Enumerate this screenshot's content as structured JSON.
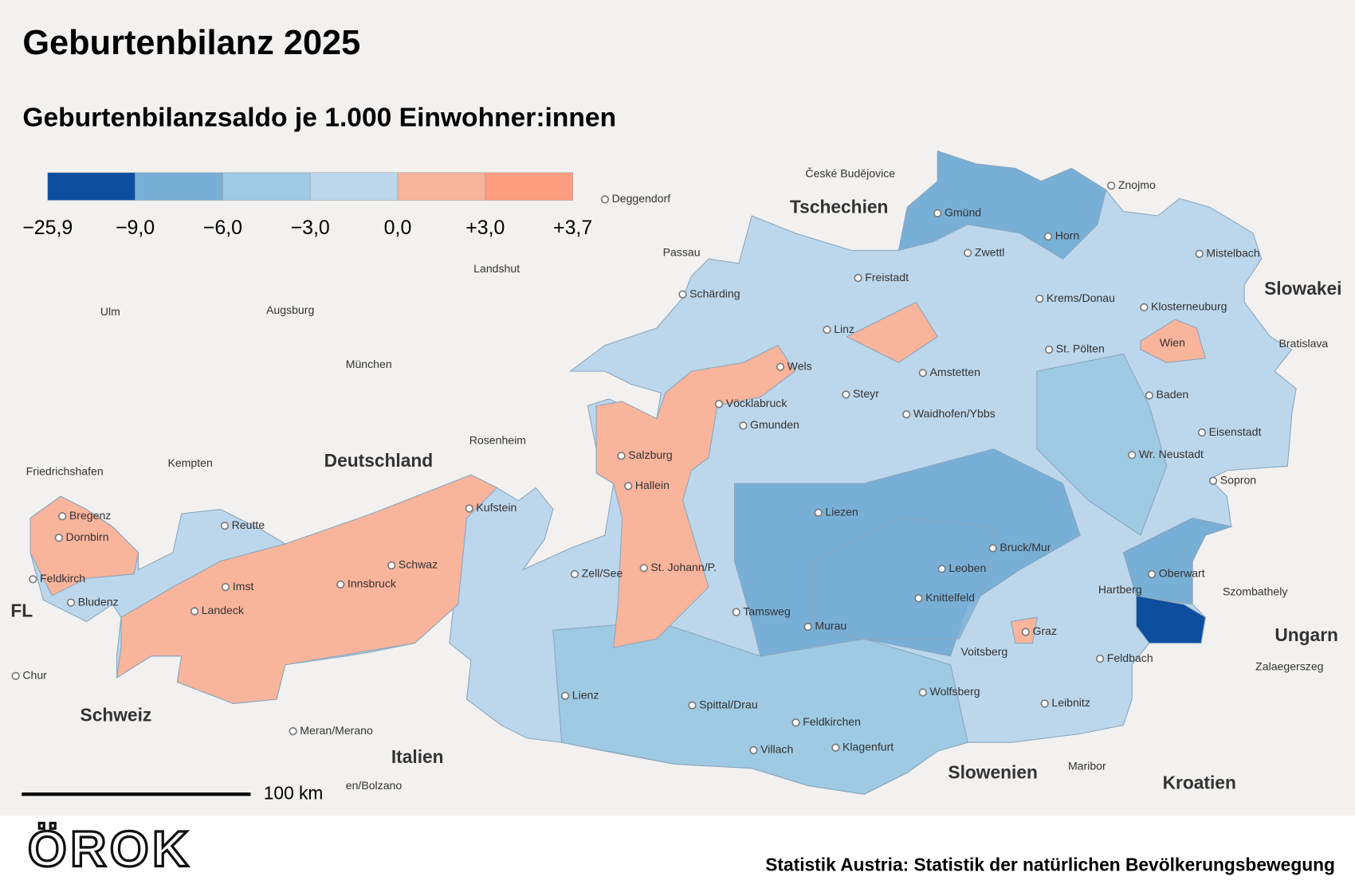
{
  "header": {
    "title": "Geburtenbilanz 2025",
    "subtitle": "Geburtenbilanzsaldo je 1.000 Einwohner:innen"
  },
  "legend": {
    "ticks": [
      {
        "value": -25.9,
        "label": "−25,9"
      },
      {
        "value": -9,
        "label": "−9,0"
      },
      {
        "value": -6,
        "label": "−6,0"
      },
      {
        "value": -3,
        "label": "−3,0"
      },
      {
        "value": 0,
        "label": "0,0"
      },
      {
        "value": 3,
        "label": "+3,0"
      },
      {
        "value": 3.7,
        "label": "+3,7"
      }
    ],
    "colors": [
      "#0d4f9e",
      "#78afd7",
      "#9fcae3",
      "#bcd7ec",
      "#f9b49c",
      "#fb9f80"
    ]
  },
  "places": [
    "Gmünd",
    "Horn",
    "Zwettl",
    "Mistelbach",
    "Znojmo",
    "České Budějovice",
    "Deggendorf",
    "Passau",
    "Freistadt",
    "Krems/Donau",
    "Klosterneuburg",
    "Schärding",
    "Linz",
    "Wels",
    "St. Pölten",
    "Wien",
    "Bratislava",
    "Amstetten",
    "Steyr",
    "Vöcklabruck",
    "Gmunden",
    "Waidhofen/Ybbs",
    "Baden",
    "Eisenstadt",
    "Wr. Neustadt",
    "Sopron",
    "Salzburg",
    "Hallein",
    "Kufstein",
    "Reutte",
    "Bregenz",
    "Dornbirn",
    "Feldkirch",
    "Bludenz",
    "Imst",
    "Landeck",
    "Schwaz",
    "Innsbruck",
    "Zell/See",
    "St. Johann/P.",
    "Liezen",
    "Bruck/Mur",
    "Leoben",
    "Knittelfeld",
    "Oberwart",
    "Hartberg",
    "Szombathely",
    "Tamsweg",
    "Murau",
    "Graz",
    "Voitsberg",
    "Feldbach",
    "Zalaegerszeg",
    "Lienz",
    "Spittal/Drau",
    "Wolfsberg",
    "Leibnitz",
    "Feldkirchen",
    "Villach",
    "Klagenfurt",
    "Maribor",
    "Chur",
    "Meran/Merano",
    "en/Bolzano",
    "Friedrichshafen",
    "Kempten",
    "Ulm",
    "Augsburg",
    "Landshut",
    "München",
    "Rosenheim"
  ],
  "countries": [
    "Tschechien",
    "Deutschland",
    "Slowakei",
    "Ungarn",
    "Slowenien",
    "Kroatien",
    "Italien",
    "Schweiz",
    "FL"
  ],
  "scale_bar": "100 km",
  "footer": {
    "logo": "ÖROK",
    "source": "Statistik Austria: Statistik der natürlichen Bevölkerungsbewegung"
  }
}
